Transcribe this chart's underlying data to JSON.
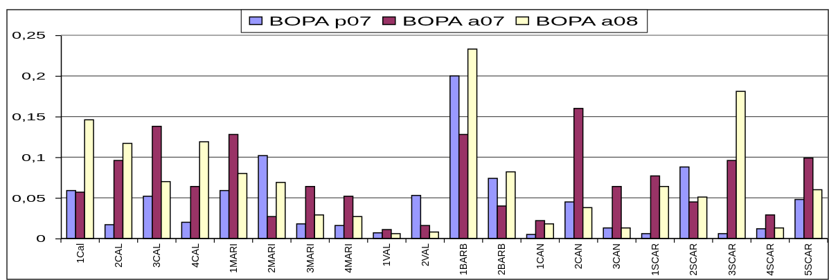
{
  "chart_data": {
    "type": "bar",
    "categories": [
      "1Cal",
      "2CAL",
      "3CAL",
      "4CAL",
      "1MARI",
      "2MARI",
      "3MARI",
      "4MARI",
      "1VAL",
      "2VAL",
      "1BARB",
      "2BARB",
      "1CAN",
      "2CAN",
      "3CAN",
      "1SCAR",
      "2SCAR",
      "3SCAR",
      "4SCAR",
      "5SCAR"
    ],
    "series": [
      {
        "name": "BOPA p07",
        "color": "#9999ff",
        "values": [
          0.059,
          0.017,
          0.052,
          0.02,
          0.059,
          0.102,
          0.018,
          0.016,
          0.007,
          0.053,
          0.2,
          0.074,
          0.005,
          0.045,
          0.013,
          0.006,
          0.088,
          0.006,
          0.012,
          0.048
        ]
      },
      {
        "name": "BOPA a07",
        "color": "#993366",
        "values": [
          0.057,
          0.096,
          0.138,
          0.064,
          0.128,
          0.027,
          0.064,
          0.052,
          0.011,
          0.016,
          0.128,
          0.04,
          0.022,
          0.16,
          0.064,
          0.077,
          0.045,
          0.096,
          0.029,
          0.099
        ]
      },
      {
        "name": "BOPA a08",
        "color": "#ffffcc",
        "values": [
          0.146,
          0.117,
          0.07,
          0.119,
          0.08,
          0.069,
          0.029,
          0.027,
          0.006,
          0.008,
          0.233,
          0.082,
          0.018,
          0.038,
          0.013,
          0.064,
          0.051,
          0.181,
          0.013,
          0.06
        ]
      }
    ],
    "ylim": [
      0,
      0.25
    ],
    "yticks": [
      0,
      {
        "value": 0.05,
        "label": "0,05"
      },
      {
        "value": 0.1,
        "label": "0,1"
      },
      {
        "value": 0.15,
        "label": "0,15"
      },
      {
        "value": 0.2,
        "label": "0,2"
      },
      {
        "value": 0.25,
        "label": "0,25"
      }
    ],
    "grid": "y",
    "legend": "top"
  }
}
